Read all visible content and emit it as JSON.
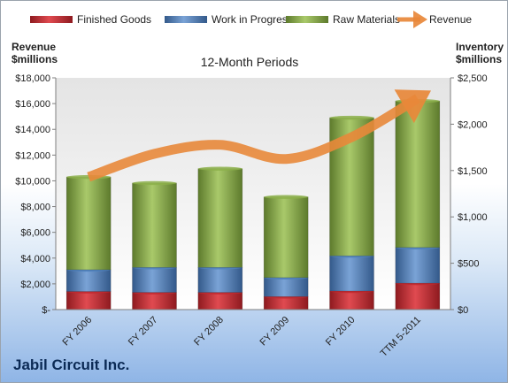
{
  "company": "Jabil Circuit Inc.",
  "chart_data": {
    "type": "bar",
    "stacked": true,
    "subtitle": "12-Month Periods",
    "categories": [
      "FY 2006",
      "FY 2007",
      "FY 2008",
      "FY 2009",
      "FY 2010",
      "TTM 5-2011"
    ],
    "series": [
      {
        "name": "Finished Goods",
        "axis": "right",
        "color": "#c0282e",
        "values": [
          195,
          185,
          185,
          140,
          200,
          285
        ]
      },
      {
        "name": "Work in Progress",
        "axis": "right",
        "color": "#4f81bd",
        "values": [
          235,
          270,
          270,
          205,
          380,
          385
        ]
      },
      {
        "name": "Raw Materials",
        "axis": "right",
        "color": "#8cb04a",
        "values": [
          1000,
          910,
          1065,
          870,
          1490,
          1580
        ]
      },
      {
        "name": "Revenue",
        "axis": "left",
        "type": "line",
        "color": "#e8883a",
        "values": [
          10300,
          12100,
          12800,
          11700,
          13400,
          16400
        ]
      }
    ],
    "ylabel_left": "Revenue\n$millions",
    "ylabel_right": "Inventory\n$millions",
    "ylim_left": [
      0,
      18000
    ],
    "ylim_right": [
      0,
      2500
    ],
    "yticks_left": [
      "$-",
      "$2,000",
      "$4,000",
      "$6,000",
      "$8,000",
      "$10,000",
      "$12,000",
      "$14,000",
      "$16,000",
      "$18,000"
    ],
    "yticks_right": [
      "$0",
      "$500",
      "$1,000",
      "$1,500",
      "$2,000",
      "$2,500"
    ],
    "legend_position": "top",
    "grid": false
  }
}
